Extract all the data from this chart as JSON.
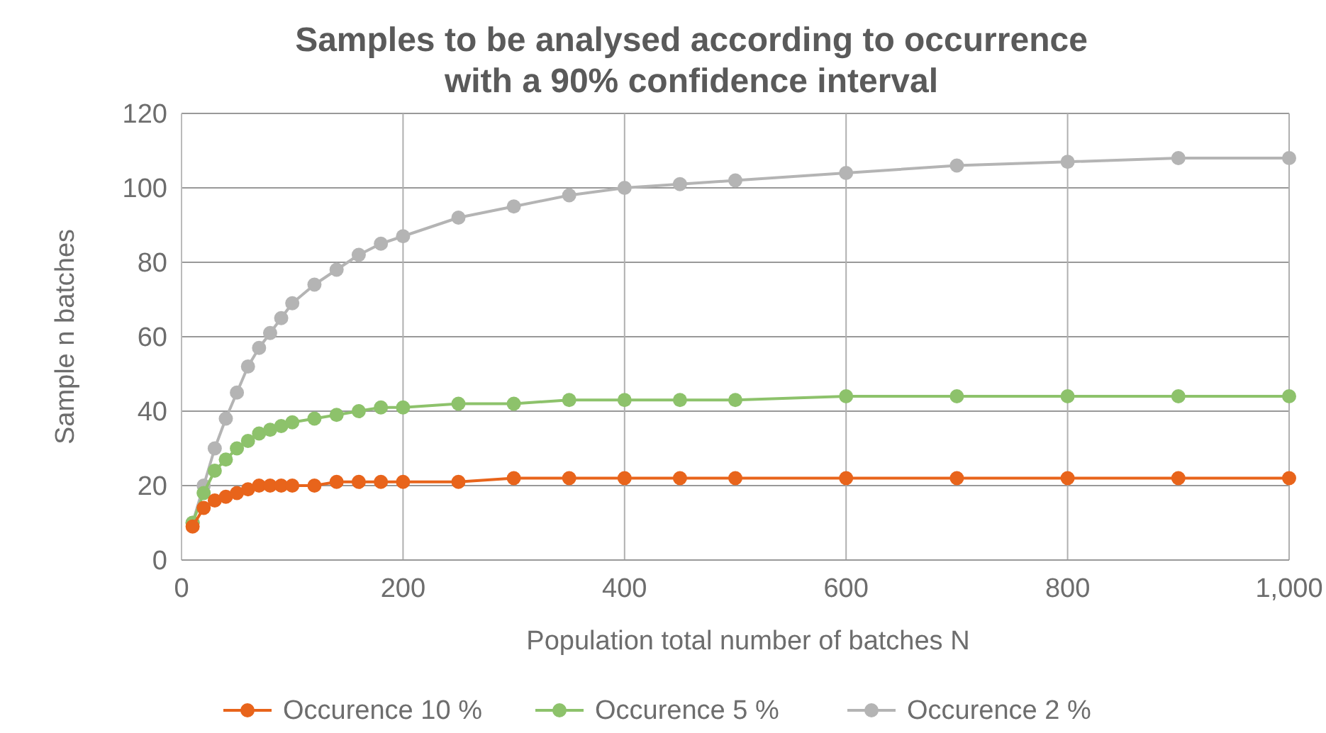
{
  "chart_data": {
    "type": "line",
    "title": "Samples to be analysed according to occurrence\nwith a 90% confidence interval",
    "xlabel": "Population total number of batches N",
    "ylabel": "Sample n batches",
    "x": [
      10,
      20,
      30,
      40,
      50,
      60,
      70,
      80,
      90,
      100,
      120,
      140,
      160,
      180,
      200,
      250,
      300,
      350,
      400,
      450,
      500,
      600,
      700,
      800,
      900,
      1000
    ],
    "series": [
      {
        "name": "Occurence 10 %",
        "color": "#e8641b",
        "values": [
          9,
          14,
          16,
          17,
          18,
          19,
          20,
          20,
          20,
          20,
          20,
          21,
          21,
          21,
          21,
          21,
          22,
          22,
          22,
          22,
          22,
          22,
          22,
          22,
          22,
          22
        ]
      },
      {
        "name": "Occurence 5 %",
        "color": "#8dc26b",
        "values": [
          10,
          18,
          24,
          27,
          30,
          32,
          34,
          35,
          36,
          37,
          38,
          39,
          40,
          41,
          41,
          42,
          42,
          43,
          43,
          43,
          43,
          44,
          44,
          44,
          44,
          44
        ]
      },
      {
        "name": "Occurence 2 %",
        "color": "#b4b4b4",
        "values": [
          10,
          20,
          30,
          38,
          45,
          52,
          57,
          61,
          65,
          69,
          74,
          78,
          82,
          85,
          87,
          92,
          95,
          98,
          100,
          101,
          102,
          104,
          106,
          107,
          108,
          108
        ]
      }
    ],
    "xlim": [
      0,
      1000
    ],
    "xticks": [
      0,
      200,
      400,
      600,
      800,
      {
        "value": 1000,
        "label": "1,000"
      }
    ],
    "ylim": [
      0,
      120
    ],
    "yticks": [
      0,
      20,
      40,
      60,
      80,
      100,
      120
    ],
    "grid": true,
    "legend": "bottom",
    "marker": "circle",
    "line_style": "solid"
  }
}
